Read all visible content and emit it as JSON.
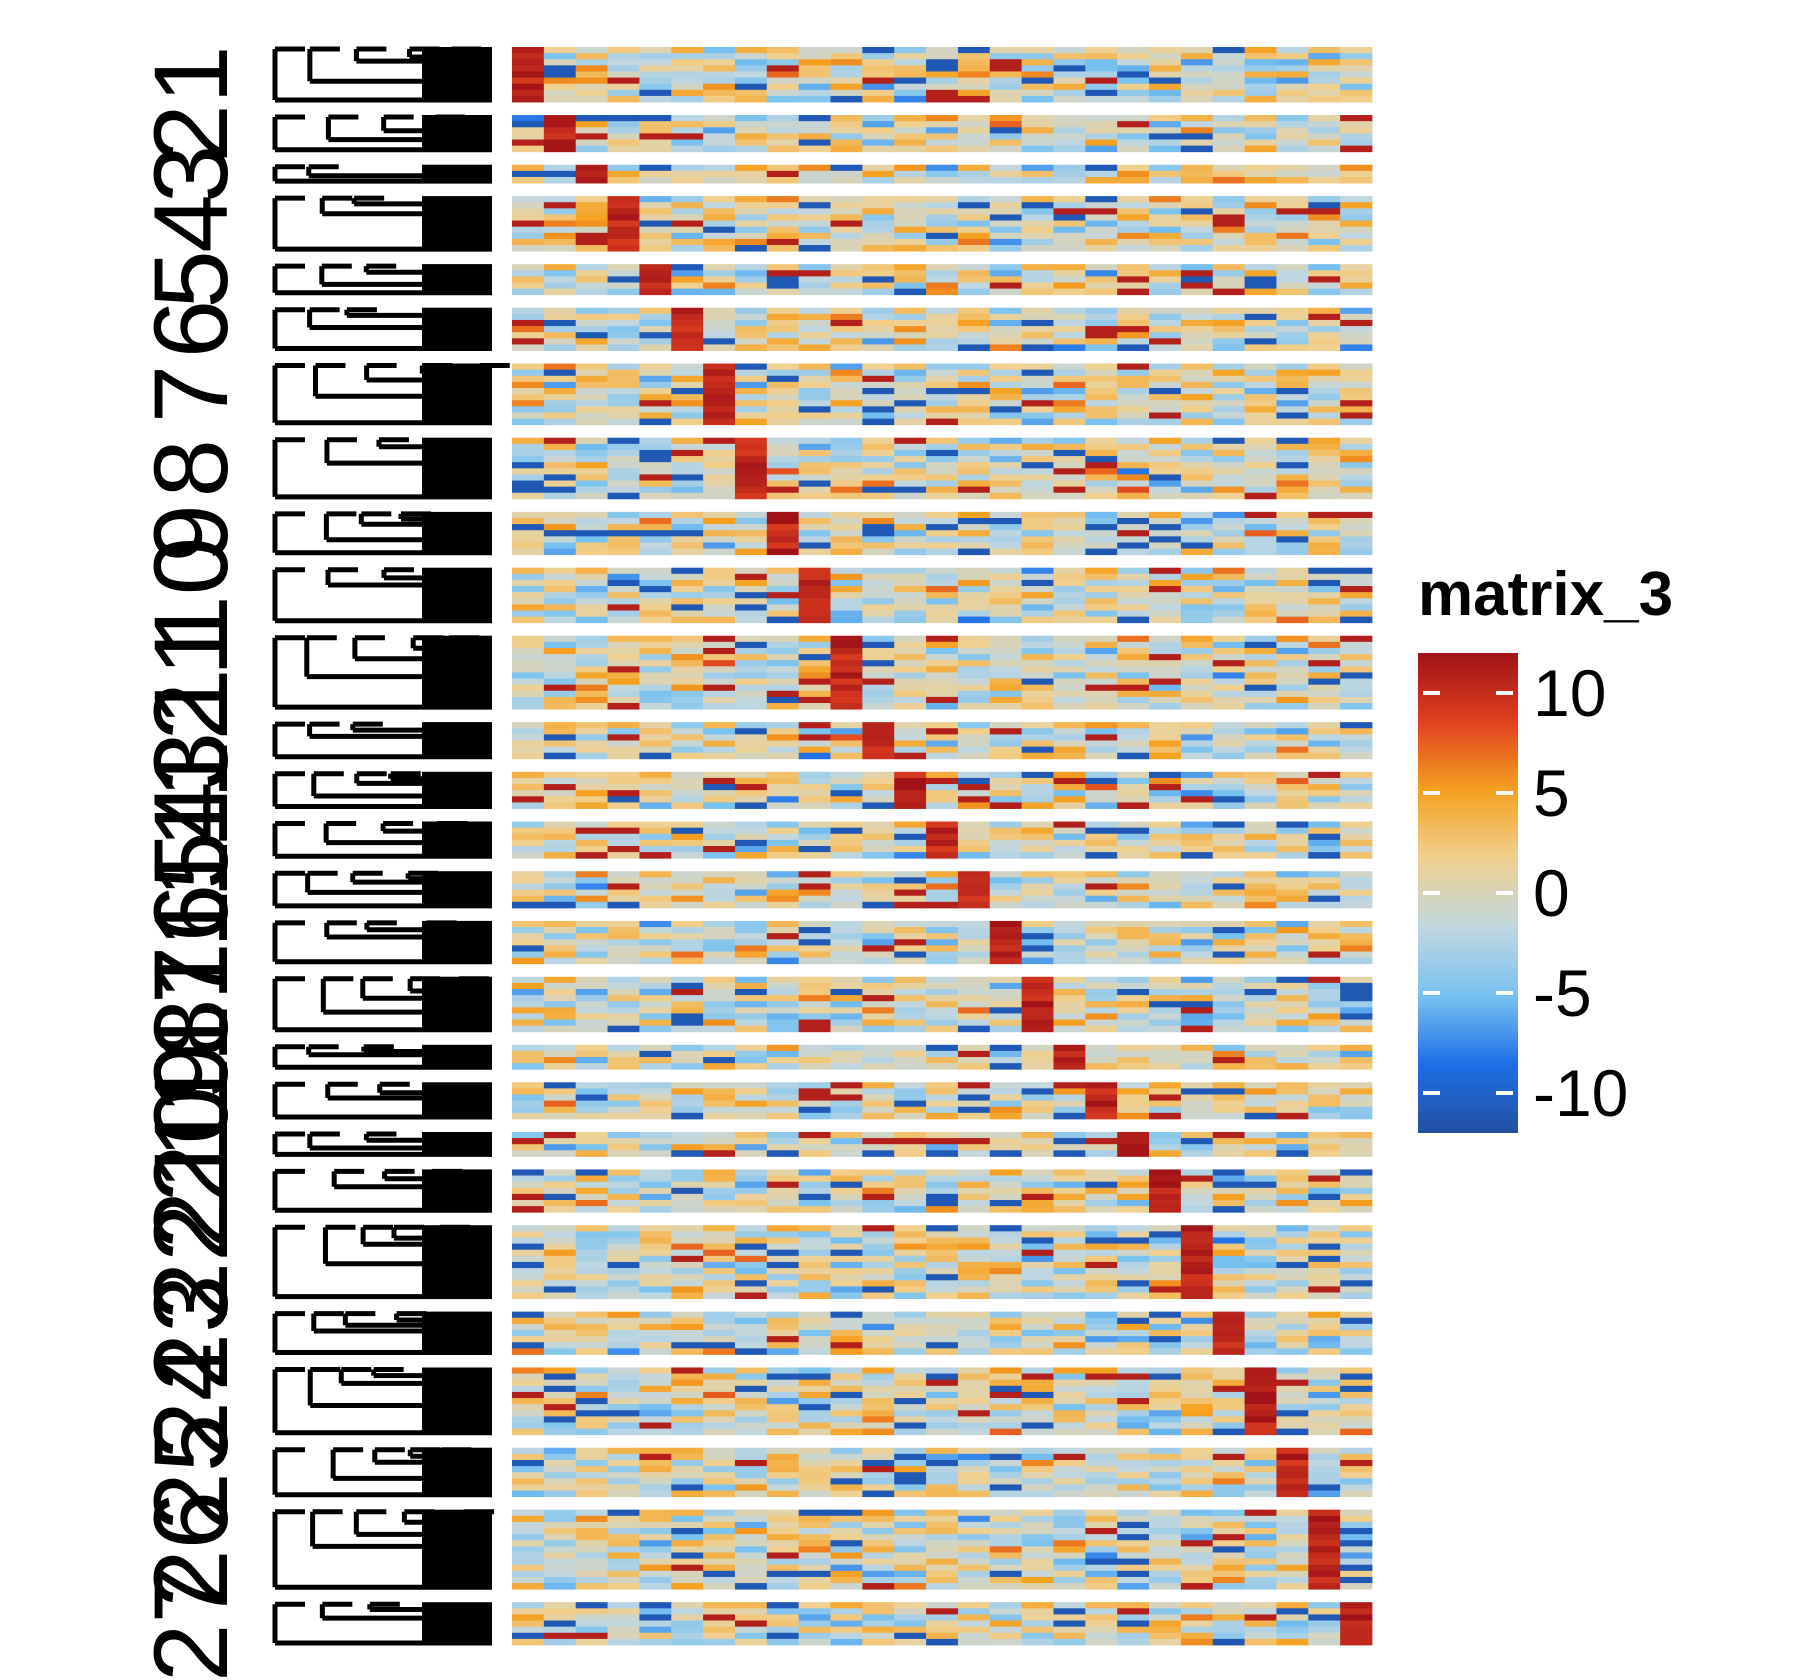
{
  "chart_data": {
    "type": "heatmap",
    "row_split_labels": [
      "1",
      "2",
      "3",
      "4",
      "5",
      "6",
      "7",
      "8",
      "9",
      "10",
      "11",
      "12",
      "13",
      "14",
      "15",
      "16",
      "17",
      "18",
      "19",
      "20",
      "21",
      "22",
      "23",
      "24",
      "25",
      "26",
      "27"
    ],
    "row_split_sizes": [
      9,
      6,
      3,
      9,
      5,
      7,
      10,
      10,
      7,
      9,
      12,
      6,
      6,
      6,
      6,
      7,
      9,
      4,
      6,
      4,
      7,
      12,
      7,
      11,
      8,
      13,
      7
    ],
    "n_columns": 27,
    "row_dendrogram": true,
    "legend": {
      "title": "matrix_3",
      "ticks": [
        10,
        5,
        0,
        -5,
        -10
      ],
      "tick_labels": [
        "10",
        "5",
        "0",
        "-5",
        "-10"
      ],
      "range": [
        -12,
        12
      ],
      "colors": [
        "#2150a0",
        "#1e6fe8",
        "#78c2f0",
        "#c0d6e0",
        "#f0d090",
        "#f5a020",
        "#e04020",
        "#a01218"
      ]
    }
  }
}
